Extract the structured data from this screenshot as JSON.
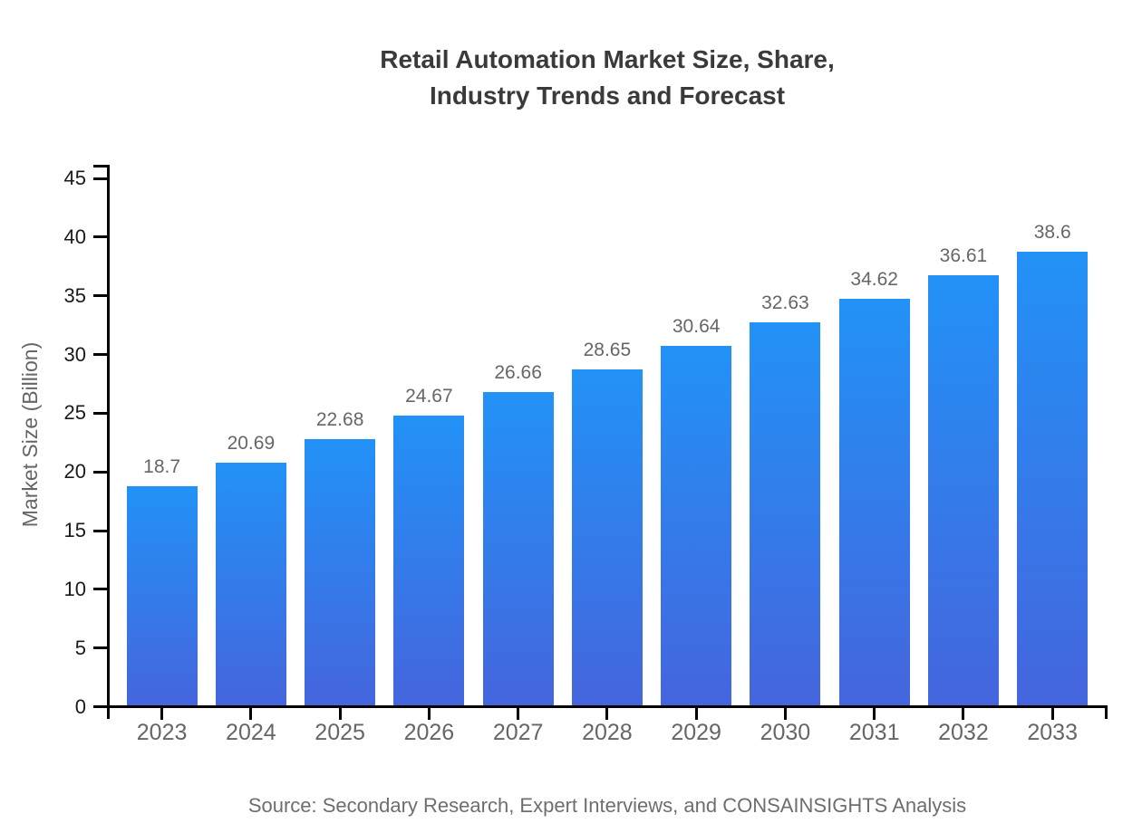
{
  "header": {
    "title_display": "Retail Automation Market Size, Share,\nIndustry Trends and Forecast"
  },
  "chart_data": {
    "type": "bar",
    "title": "Retail Automation Market Size, Share, Industry Trends and Forecast",
    "categories": [
      "2023",
      "2024",
      "2025",
      "2026",
      "2027",
      "2028",
      "2029",
      "2030",
      "2031",
      "2032",
      "2033"
    ],
    "values": [
      18.7,
      20.69,
      22.68,
      24.67,
      26.66,
      28.65,
      30.64,
      32.63,
      34.62,
      36.61,
      38.6
    ],
    "value_labels": [
      "18.7",
      "20.69",
      "22.68",
      "24.67",
      "26.66",
      "28.65",
      "30.64",
      "32.63",
      "34.62",
      "36.61",
      "38.6"
    ],
    "xlabel": "",
    "ylabel": "Market Size (Billion)",
    "ylim": [
      0,
      45
    ],
    "yticks": [
      0,
      5,
      10,
      15,
      20,
      25,
      30,
      35,
      40,
      45
    ],
    "grid": false,
    "legend_position": "none",
    "colors": {
      "bar_gradient_top": "#2292f7",
      "bar_gradient_bottom": "#4565dd",
      "axis": "#000000",
      "y_tick_label": "#1a1a1a",
      "x_tick_label": "#666666",
      "value_label": "#666666",
      "title": "#3a3a3a",
      "axis_label": "#666666",
      "source": "#6e6e6e"
    }
  },
  "footer": {
    "source": "Source: Secondary Research, Expert Interviews, and CONSAINSIGHTS Analysis"
  }
}
